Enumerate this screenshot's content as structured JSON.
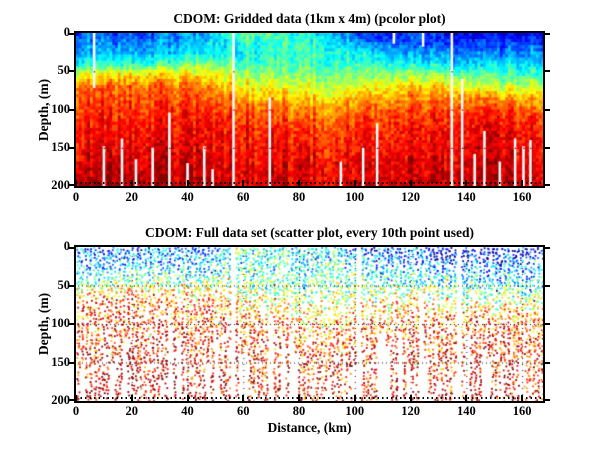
{
  "figure": {
    "background": "#ffffff",
    "axis_color": "#000000",
    "text_color": "#000000",
    "gap_color": "#ffffff",
    "colormap": "jet",
    "colormap_stops": [
      "#00008f",
      "#0000ff",
      "#00ffff",
      "#80ff80",
      "#ffff00",
      "#ff8000",
      "#ff0000",
      "#800000"
    ]
  },
  "chart_data": [
    {
      "type": "heatmap",
      "title": "CDOM: Gridded data (1km x 4m) (pcolor plot)",
      "xlabel": "",
      "ylabel": "Depth, (m)",
      "xlim": [
        0,
        167.5
      ],
      "ylim": [
        0,
        200
      ],
      "y_inverted": true,
      "xticks": [
        0,
        20,
        40,
        60,
        80,
        100,
        120,
        140,
        160
      ],
      "yticks": [
        0,
        50,
        100,
        150,
        200
      ],
      "cell_size": {
        "km": 1,
        "m": 4
      },
      "grid_distances_km": [
        0,
        15,
        30,
        45,
        60,
        75,
        90,
        105,
        120,
        135,
        150,
        167
      ],
      "grid_depths_m": [
        0,
        10,
        25,
        40,
        55,
        70,
        85,
        100,
        120,
        150,
        175,
        200
      ],
      "values_normalized_cdom": [
        [
          0.22,
          0.2,
          0.22,
          0.28,
          0.5,
          0.42,
          0.33,
          0.15,
          0.18,
          0.12,
          0.1,
          0.15
        ],
        [
          0.25,
          0.24,
          0.26,
          0.3,
          0.44,
          0.42,
          0.4,
          0.2,
          0.2,
          0.15,
          0.15,
          0.18
        ],
        [
          0.3,
          0.3,
          0.32,
          0.35,
          0.4,
          0.42,
          0.42,
          0.35,
          0.3,
          0.25,
          0.22,
          0.28
        ],
        [
          0.38,
          0.4,
          0.45,
          0.5,
          0.45,
          0.45,
          0.44,
          0.42,
          0.4,
          0.35,
          0.32,
          0.35
        ],
        [
          0.62,
          0.65,
          0.68,
          0.65,
          0.55,
          0.5,
          0.5,
          0.5,
          0.55,
          0.5,
          0.42,
          0.45
        ],
        [
          0.75,
          0.78,
          0.78,
          0.75,
          0.65,
          0.6,
          0.58,
          0.6,
          0.68,
          0.65,
          0.55,
          0.6
        ],
        [
          0.8,
          0.8,
          0.82,
          0.8,
          0.72,
          0.68,
          0.65,
          0.7,
          0.75,
          0.75,
          0.7,
          0.7
        ],
        [
          0.82,
          0.83,
          0.84,
          0.85,
          0.8,
          0.75,
          0.72,
          0.78,
          0.8,
          0.82,
          0.8,
          0.78
        ],
        [
          0.85,
          0.86,
          0.87,
          0.88,
          0.85,
          0.82,
          0.8,
          0.83,
          0.85,
          0.86,
          0.87,
          0.85
        ],
        [
          0.88,
          0.9,
          0.92,
          0.9,
          0.88,
          0.87,
          0.85,
          0.87,
          0.88,
          0.9,
          0.9,
          0.88
        ],
        [
          0.92,
          0.93,
          0.95,
          0.93,
          0.9,
          0.9,
          0.88,
          0.9,
          0.92,
          0.92,
          0.92,
          0.9
        ],
        [
          0.95,
          0.95,
          0.96,
          0.95,
          0.92,
          0.92,
          0.9,
          0.92,
          0.93,
          0.93,
          0.93,
          0.92
        ]
      ],
      "missing_data_columns": [
        {
          "km": 6.5,
          "top": 0,
          "bottom": 72
        },
        {
          "km": 10,
          "top": 148,
          "bottom": 200
        },
        {
          "km": 16.5,
          "top": 138,
          "bottom": 200
        },
        {
          "km": 21.5,
          "top": 165,
          "bottom": 200
        },
        {
          "km": 27.5,
          "top": 150,
          "bottom": 200
        },
        {
          "km": 33.5,
          "top": 104,
          "bottom": 200
        },
        {
          "km": 40,
          "top": 170,
          "bottom": 200
        },
        {
          "km": 46,
          "top": 148,
          "bottom": 200
        },
        {
          "km": 49,
          "top": 178,
          "bottom": 200
        },
        {
          "km": 56.5,
          "top": 0,
          "bottom": 200
        },
        {
          "km": 69.5,
          "top": 84,
          "bottom": 200
        },
        {
          "km": 95,
          "top": 168,
          "bottom": 200
        },
        {
          "km": 103,
          "top": 150,
          "bottom": 200
        },
        {
          "km": 108,
          "top": 118,
          "bottom": 200
        },
        {
          "km": 114,
          "top": 0,
          "bottom": 14
        },
        {
          "km": 124.5,
          "top": 0,
          "bottom": 18
        },
        {
          "km": 134.8,
          "top": 0,
          "bottom": 200
        },
        {
          "km": 138.5,
          "top": 60,
          "bottom": 200
        },
        {
          "km": 143,
          "top": 158,
          "bottom": 200
        },
        {
          "km": 146.5,
          "top": 128,
          "bottom": 200
        },
        {
          "km": 152,
          "top": 168,
          "bottom": 200
        },
        {
          "km": 157.5,
          "top": 138,
          "bottom": 200
        },
        {
          "km": 160.5,
          "top": 148,
          "bottom": 200
        },
        {
          "km": 163,
          "top": 140,
          "bottom": 200
        }
      ]
    },
    {
      "type": "scatter",
      "title": "CDOM: Full data set (scatter plot, every 10th point used)",
      "xlabel": "Distance, (km)",
      "ylabel": "Depth, (m)",
      "xlim": [
        0,
        167.5
      ],
      "ylim": [
        0,
        200
      ],
      "y_inverted": true,
      "xticks": [
        0,
        20,
        40,
        60,
        80,
        100,
        120,
        140,
        160
      ],
      "yticks": [
        0,
        50,
        100,
        150,
        200
      ],
      "grid": "dotted",
      "marker_px": 1.8,
      "noise_amplitude": 0.4,
      "missing_data_columns": [
        {
          "km": 33.5,
          "top": 100,
          "bottom": 200
        },
        {
          "km": 56.5,
          "top": 0,
          "bottom": 200
        },
        {
          "km": 69.5,
          "top": 90,
          "bottom": 200
        },
        {
          "km": 101,
          "top": 0,
          "bottom": 200
        },
        {
          "km": 108,
          "top": 120,
          "bottom": 200
        },
        {
          "km": 123,
          "top": 60,
          "bottom": 200
        },
        {
          "km": 137,
          "top": 0,
          "bottom": 200
        },
        {
          "km": 146,
          "top": 130,
          "bottom": 200
        }
      ]
    }
  ]
}
